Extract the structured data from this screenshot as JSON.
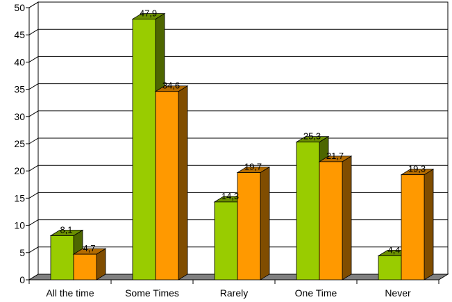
{
  "chart_data": {
    "type": "bar",
    "style": "3d-clustered-column",
    "categories": [
      "All the time",
      "Some Times",
      "Rarely",
      "One Time",
      "Never"
    ],
    "series": [
      {
        "values": [
          8.1,
          47.9,
          14.3,
          25.3,
          4.4
        ],
        "color": "#99cc00",
        "side_color": "#4d6600",
        "top_color": "#6b8f00"
      },
      {
        "values": [
          4.7,
          34.6,
          19.7,
          21.7,
          19.3
        ],
        "color": "#ff9900",
        "side_color": "#804d00",
        "top_color": "#b36b00"
      }
    ],
    "data_labels": [
      [
        "8,1",
        "47,9",
        "14,3",
        "25,3",
        "4,4"
      ],
      [
        "4,7",
        "34,6",
        "19,7",
        "21,7",
        "19,3"
      ]
    ],
    "y_ticks": [
      "0",
      "5",
      "10",
      "15",
      "20",
      "25",
      "30",
      "35",
      "40",
      "45",
      "50"
    ],
    "ylim": [
      0,
      50
    ],
    "major_unit": 5,
    "grid": true,
    "legend": "none",
    "title": "",
    "xlabel": "",
    "ylabel": "",
    "floor_color": "#808080"
  }
}
